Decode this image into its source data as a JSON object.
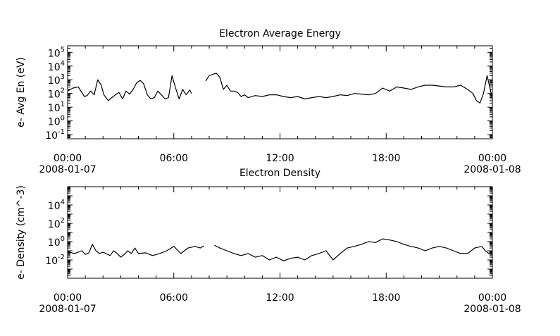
{
  "chart_data": [
    {
      "type": "line",
      "title": "Electron Average Energy",
      "ylabel": "e- Avg En (eV)",
      "y_scale": "log",
      "ylim": [
        0.05,
        300000
      ],
      "y_ticks": [
        {
          "value": 0.1,
          "base": "10",
          "exp": "-1"
        },
        {
          "value": 1,
          "base": "10",
          "exp": "0"
        },
        {
          "value": 10,
          "base": "10",
          "exp": "1"
        },
        {
          "value": 100,
          "base": "10",
          "exp": "2"
        },
        {
          "value": 1000,
          "base": "10",
          "exp": "3"
        },
        {
          "value": 10000,
          "base": "10",
          "exp": "4"
        },
        {
          "value": 100000,
          "base": "10",
          "exp": "5"
        }
      ],
      "xlim": [
        "2008-01-07 00:00",
        "2008-01-08 00:00"
      ],
      "x_ticks": [
        {
          "hour": 0,
          "label": "00:00",
          "date": "2008-01-07"
        },
        {
          "hour": 6,
          "label": "06:00",
          "date": ""
        },
        {
          "hour": 12,
          "label": "12:00",
          "date": ""
        },
        {
          "hour": 18,
          "label": "18:00",
          "date": ""
        },
        {
          "hour": 24,
          "label": "00:00",
          "date": "2008-01-08"
        }
      ],
      "series": [
        {
          "points_hour_value": [
            [
              0.0,
              150
            ],
            [
              0.3,
              250
            ],
            [
              0.6,
              300
            ],
            [
              0.8,
              120
            ],
            [
              0.95,
              60
            ],
            [
              1.1,
              70
            ],
            [
              1.3,
              150
            ],
            [
              1.5,
              80
            ],
            [
              1.7,
              1000
            ],
            [
              1.9,
              400
            ],
            [
              2.05,
              80
            ],
            [
              2.3,
              30
            ],
            [
              2.5,
              50
            ],
            [
              2.7,
              80
            ],
            [
              2.9,
              120
            ],
            [
              3.1,
              40
            ],
            [
              3.3,
              150
            ],
            [
              3.5,
              90
            ],
            [
              3.7,
              200
            ],
            [
              3.9,
              600
            ],
            [
              4.1,
              900
            ],
            [
              4.3,
              500
            ],
            [
              4.5,
              80
            ],
            [
              4.7,
              40
            ],
            [
              4.9,
              50
            ],
            [
              5.1,
              150
            ],
            [
              5.3,
              80
            ],
            [
              5.5,
              40
            ],
            [
              5.7,
              50
            ],
            [
              5.9,
              2000
            ],
            [
              6.1,
              250
            ],
            [
              6.3,
              40
            ],
            [
              6.5,
              200
            ],
            [
              6.7,
              80
            ],
            [
              6.9,
              180
            ],
            [
              7.0,
              100
            ],
            null,
            [
              7.8,
              800
            ],
            [
              8.0,
              2000
            ],
            [
              8.2,
              2500
            ],
            [
              8.4,
              3000
            ],
            [
              8.6,
              1500
            ],
            [
              8.8,
              200
            ],
            [
              9.0,
              400
            ],
            [
              9.2,
              150
            ],
            [
              9.4,
              150
            ],
            [
              9.6,
              120
            ],
            [
              9.8,
              60
            ],
            [
              10.0,
              80
            ],
            [
              10.2,
              50
            ],
            [
              10.6,
              70
            ],
            [
              11.0,
              60
            ],
            [
              11.4,
              80
            ],
            [
              11.8,
              80
            ],
            [
              12.2,
              60
            ],
            [
              12.6,
              50
            ],
            [
              13.0,
              60
            ],
            [
              13.4,
              40
            ],
            [
              13.8,
              50
            ],
            [
              14.2,
              60
            ],
            [
              14.6,
              50
            ],
            [
              15.0,
              60
            ],
            [
              15.4,
              80
            ],
            [
              15.8,
              70
            ],
            [
              16.2,
              100
            ],
            [
              16.6,
              90
            ],
            [
              17.0,
              80
            ],
            [
              17.4,
              100
            ],
            [
              17.8,
              250
            ],
            [
              18.2,
              150
            ],
            [
              18.6,
              300
            ],
            [
              19.0,
              250
            ],
            [
              19.4,
              200
            ],
            [
              19.8,
              300
            ],
            [
              20.2,
              400
            ],
            [
              20.6,
              400
            ],
            [
              21.0,
              350
            ],
            [
              21.4,
              300
            ],
            [
              21.8,
              300
            ],
            [
              22.2,
              400
            ],
            [
              22.6,
              200
            ],
            [
              22.9,
              100
            ],
            [
              23.1,
              30
            ],
            [
              23.3,
              20
            ],
            [
              23.5,
              100
            ],
            [
              23.7,
              2000
            ],
            [
              23.85,
              300
            ],
            [
              24.0,
              40
            ]
          ]
        }
      ]
    },
    {
      "type": "line",
      "title": "Electron Density",
      "ylabel": "e- Density (cm^-3)",
      "y_scale": "log",
      "ylim": [
        0.0001,
        1000000
      ],
      "y_ticks": [
        {
          "value": 0.01,
          "base": "10",
          "exp": "-2"
        },
        {
          "value": 1,
          "base": "10",
          "exp": "0"
        },
        {
          "value": 100,
          "base": "10",
          "exp": "2"
        },
        {
          "value": 10000,
          "base": "10",
          "exp": "4"
        }
      ],
      "xlim": [
        "2008-01-07 00:00",
        "2008-01-08 00:00"
      ],
      "x_ticks": [
        {
          "hour": 0,
          "label": "00:00",
          "date": "2008-01-07"
        },
        {
          "hour": 6,
          "label": "06:00",
          "date": ""
        },
        {
          "hour": 12,
          "label": "12:00",
          "date": ""
        },
        {
          "hour": 18,
          "label": "18:00",
          "date": ""
        },
        {
          "hour": 24,
          "label": "00:00",
          "date": "2008-01-08"
        }
      ],
      "series": [
        {
          "points_hour_value": [
            [
              0.0,
              0.08
            ],
            [
              0.4,
              0.05
            ],
            [
              0.8,
              0.1
            ],
            [
              1.0,
              0.04
            ],
            [
              1.2,
              0.06
            ],
            [
              1.4,
              0.5
            ],
            [
              1.6,
              0.1
            ],
            [
              1.8,
              0.05
            ],
            [
              2.0,
              0.07
            ],
            [
              2.4,
              0.03
            ],
            [
              2.6,
              0.1
            ],
            [
              2.8,
              0.05
            ],
            [
              3.0,
              0.02
            ],
            [
              3.2,
              0.04
            ],
            [
              3.4,
              0.1
            ],
            [
              3.6,
              0.05
            ],
            [
              3.8,
              0.2
            ],
            [
              4.0,
              0.05
            ],
            [
              4.4,
              0.06
            ],
            [
              4.8,
              0.03
            ],
            [
              5.2,
              0.05
            ],
            [
              5.6,
              0.1
            ],
            [
              6.0,
              0.3
            ],
            [
              6.4,
              0.05
            ],
            [
              6.8,
              0.2
            ],
            [
              7.2,
              0.3
            ],
            [
              7.5,
              0.2
            ],
            [
              7.7,
              0.35
            ],
            null,
            [
              8.3,
              0.4
            ],
            [
              8.6,
              0.2
            ],
            [
              9.0,
              0.1
            ],
            [
              9.4,
              0.05
            ],
            [
              9.8,
              0.03
            ],
            [
              10.2,
              0.05
            ],
            [
              10.6,
              0.02
            ],
            [
              11.0,
              0.03
            ],
            [
              11.4,
              0.01
            ],
            [
              11.8,
              0.02
            ],
            [
              12.2,
              0.008
            ],
            [
              12.6,
              0.015
            ],
            [
              13.0,
              0.02
            ],
            [
              13.4,
              0.01
            ],
            [
              13.8,
              0.03
            ],
            [
              14.2,
              0.05
            ],
            [
              14.6,
              0.1
            ],
            [
              15.0,
              0.01
            ],
            [
              15.4,
              0.05
            ],
            [
              15.8,
              0.2
            ],
            [
              16.2,
              0.3
            ],
            [
              16.6,
              0.5
            ],
            [
              17.0,
              1.0
            ],
            [
              17.4,
              0.8
            ],
            [
              17.8,
              2.0
            ],
            [
              18.2,
              1.5
            ],
            [
              18.6,
              1.0
            ],
            [
              19.0,
              0.5
            ],
            [
              19.4,
              0.3
            ],
            [
              19.8,
              0.2
            ],
            [
              20.2,
              0.1
            ],
            [
              20.6,
              0.2
            ],
            [
              21.0,
              0.3
            ],
            [
              21.4,
              0.2
            ],
            [
              21.8,
              0.1
            ],
            [
              22.2,
              0.05
            ],
            [
              22.6,
              0.05
            ],
            [
              23.0,
              0.2
            ],
            [
              23.4,
              0.3
            ],
            [
              23.6,
              0.1
            ],
            [
              23.8,
              0.05
            ],
            [
              24.0,
              0.1
            ]
          ]
        }
      ]
    }
  ]
}
